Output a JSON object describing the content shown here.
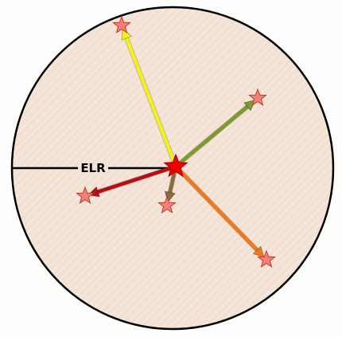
{
  "diagram": {
    "radius_label": "ELR",
    "colors": {
      "circle_fill": "#f3e2d4",
      "circle_hatch": "#ffffff",
      "circle_stroke": "#000000",
      "radius_line": "#000000",
      "center_star": "#ee0000",
      "outer_star_fill": "#f08078",
      "outer_star_stroke": "#c0392b"
    },
    "arrows": [
      {
        "id": "yellow",
        "color": "#f5f018",
        "star_icon": "star-icon"
      },
      {
        "id": "green",
        "color": "#7e9a2c",
        "star_icon": "star-icon"
      },
      {
        "id": "orange",
        "color": "#ee7a1c",
        "star_icon": "star-icon"
      },
      {
        "id": "brown",
        "color": "#8b6b3a",
        "star_icon": "star-icon"
      },
      {
        "id": "red",
        "color": "#b80e12",
        "star_icon": "star-icon"
      }
    ]
  }
}
